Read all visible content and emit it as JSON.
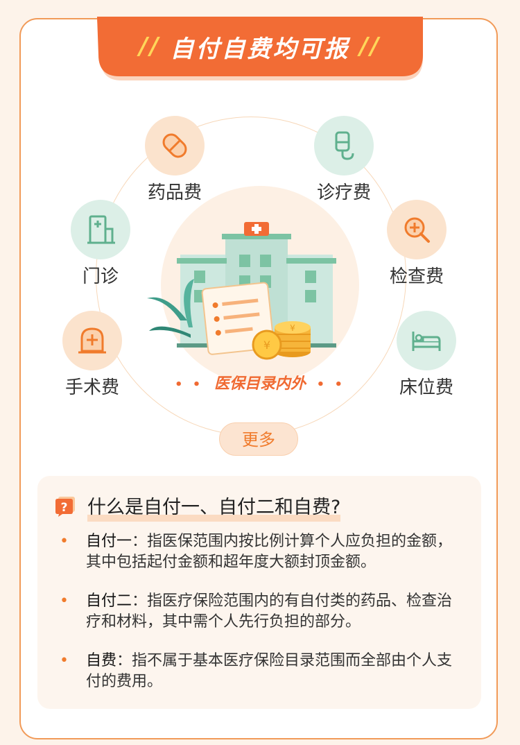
{
  "banner": {
    "title": "自付自费均可报",
    "slashes": "//"
  },
  "categories": [
    {
      "label": "药品费",
      "icon": "pill-icon"
    },
    {
      "label": "诊疗费",
      "icon": "iv-drip-icon"
    },
    {
      "label": "门诊",
      "icon": "hospital-building-icon"
    },
    {
      "label": "检查费",
      "icon": "magnifier-cross-icon"
    },
    {
      "label": "手术费",
      "icon": "surgery-cross-icon"
    },
    {
      "label": "床位费",
      "icon": "hospital-bed-icon"
    }
  ],
  "center": {
    "dots": "• •",
    "tagline": "医保目录内外"
  },
  "more_button": "更多",
  "faq": {
    "question": "什么是自付一、自付二和自费?",
    "items": [
      {
        "term": "自付一",
        "definition": "：指医保范围内按比例计算个人应负担的金额，其中包括起付金额和超年度大额封顶金额。"
      },
      {
        "term": "自付二",
        "definition": "：指医疗保险范围内的有自付类的药品、检查治疗和材料，其中需个人先行负担的部分。"
      },
      {
        "term": "自费",
        "definition": "：指不属于基本医疗保险目录范围而全部由个人支付的费用。"
      }
    ]
  },
  "colors": {
    "accent": "#f07b2c",
    "border": "#f19a58",
    "green": "#7cc3a3",
    "bg": "#fdf3ea"
  }
}
